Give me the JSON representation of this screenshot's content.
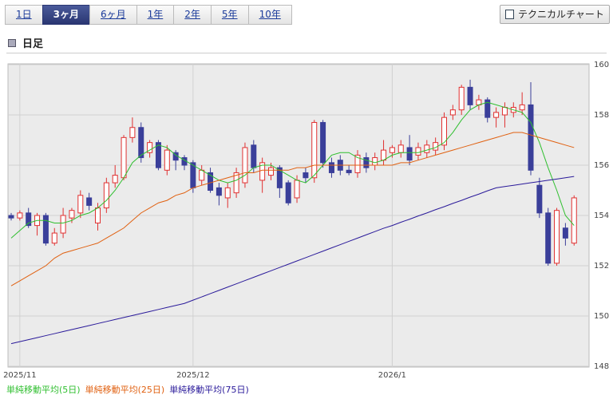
{
  "tabs": {
    "items": [
      "1日",
      "3ヶ月",
      "6ヶ月",
      "1年",
      "2年",
      "5年",
      "10年"
    ],
    "active": 1
  },
  "button": "テクニカルチャート",
  "section_title": "日足",
  "chart_data": {
    "type": "candlestick",
    "categories": [
      null,
      "2025/11",
      null,
      null,
      null,
      null,
      null,
      null,
      null,
      null,
      null,
      null,
      null,
      null,
      null,
      null,
      null,
      null,
      null,
      null,
      null,
      "2025/12",
      null,
      null,
      null,
      null,
      null,
      null,
      null,
      null,
      null,
      null,
      null,
      null,
      null,
      null,
      null,
      null,
      null,
      null,
      null,
      null,
      null,
      null,
      "2026/1",
      null,
      null,
      null,
      null,
      null,
      null,
      null,
      null,
      null,
      null,
      null,
      null,
      null,
      null,
      null,
      null,
      null,
      null,
      null,
      null,
      null
    ],
    "open": [
      154.0,
      153.9,
      154.1,
      153.6,
      154.0,
      152.9,
      153.3,
      153.9,
      154.1,
      154.7,
      153.7,
      154.3,
      155.3,
      155.5,
      157.1,
      157.5,
      156.5,
      156.9,
      155.8,
      156.5,
      156.3,
      156.1,
      155.4,
      155.7,
      155.1,
      154.7,
      154.9,
      155.3,
      156.8,
      155.4,
      155.6,
      155.9,
      155.3,
      154.7,
      155.7,
      155.5,
      157.7,
      156.1,
      156.2,
      155.8,
      155.7,
      156.3,
      156.0,
      156.2,
      156.5,
      156.5,
      156.7,
      156.4,
      156.5,
      156.6,
      156.8,
      158.0,
      158.2,
      159.1,
      158.4,
      158.6,
      157.9,
      158.0,
      158.1,
      158.2,
      158.4,
      155.2,
      154.1,
      152.1,
      153.5,
      152.9
    ],
    "high": [
      154.1,
      154.2,
      154.3,
      154.1,
      154.1,
      153.5,
      154.3,
      154.3,
      155.0,
      154.9,
      154.5,
      155.5,
      156.0,
      157.2,
      157.9,
      157.7,
      157.0,
      157.0,
      156.8,
      156.6,
      156.4,
      156.2,
      156.0,
      155.9,
      155.3,
      155.3,
      155.9,
      156.9,
      157.0,
      156.3,
      156.1,
      156.0,
      155.4,
      155.6,
      155.9,
      157.8,
      157.8,
      156.3,
      156.4,
      156.0,
      156.6,
      156.5,
      156.5,
      157.0,
      156.8,
      157.0,
      157.2,
      156.9,
      157.0,
      157.1,
      158.1,
      158.4,
      159.2,
      159.4,
      158.8,
      158.7,
      158.3,
      158.5,
      158.5,
      158.9,
      159.3,
      155.5,
      154.3,
      154.3,
      153.7,
      154.8
    ],
    "low": [
      153.8,
      153.8,
      153.5,
      153.2,
      152.8,
      152.8,
      153.1,
      153.7,
      153.9,
      154.2,
      153.4,
      154.1,
      155.1,
      155.4,
      156.9,
      156.1,
      156.3,
      155.8,
      155.6,
      155.8,
      155.8,
      154.9,
      155.2,
      154.9,
      154.4,
      154.3,
      154.7,
      155.1,
      155.7,
      154.9,
      155.4,
      154.7,
      154.4,
      154.5,
      155.3,
      155.3,
      155.9,
      155.5,
      155.6,
      155.6,
      155.5,
      155.7,
      155.8,
      156.0,
      156.3,
      156.3,
      156.0,
      156.2,
      156.3,
      156.4,
      156.6,
      157.8,
      158.0,
      158.2,
      158.2,
      157.7,
      157.5,
      157.5,
      157.9,
      158.0,
      155.6,
      153.9,
      152.0,
      152.0,
      152.8,
      152.8
    ],
    "close": [
      153.9,
      154.1,
      153.6,
      154.0,
      152.9,
      153.3,
      154.0,
      154.2,
      154.8,
      154.4,
      154.3,
      155.3,
      155.6,
      157.1,
      157.5,
      156.3,
      156.9,
      155.9,
      156.6,
      156.2,
      156.0,
      155.1,
      155.8,
      155.0,
      154.8,
      155.1,
      155.7,
      156.7,
      155.9,
      156.1,
      155.9,
      155.1,
      154.5,
      155.4,
      155.5,
      157.7,
      156.1,
      155.7,
      155.8,
      155.7,
      156.4,
      155.9,
      156.3,
      156.6,
      156.7,
      156.8,
      156.2,
      156.7,
      156.8,
      156.9,
      157.9,
      158.2,
      159.1,
      158.4,
      158.6,
      157.9,
      158.1,
      158.3,
      158.3,
      158.4,
      155.8,
      154.1,
      152.1,
      154.2,
      153.1,
      154.7
    ],
    "up_color": "#e03030",
    "down_color": "#3a3f9a",
    "series": [
      {
        "name": "単純移動平均(5日)",
        "color": "#2fbf2f",
        "values": [
          153.1,
          153.4,
          153.7,
          153.8,
          153.8,
          153.7,
          153.7,
          153.8,
          154.0,
          154.1,
          154.3,
          154.6,
          155.0,
          155.5,
          156.1,
          156.4,
          156.6,
          156.8,
          156.7,
          156.4,
          156.2,
          156.0,
          155.8,
          155.6,
          155.4,
          155.3,
          155.4,
          155.6,
          155.9,
          156.0,
          156.0,
          155.8,
          155.6,
          155.4,
          155.3,
          155.6,
          156.0,
          156.4,
          156.5,
          156.5,
          156.3,
          156.2,
          156.1,
          156.2,
          156.4,
          156.5,
          156.5,
          156.5,
          156.6,
          156.7,
          156.9,
          157.3,
          157.8,
          158.2,
          158.4,
          158.5,
          158.4,
          158.3,
          158.2,
          158.1,
          157.7,
          156.9,
          155.9,
          155.0,
          154.0,
          153.6
        ]
      },
      {
        "name": "単純移動平均(25日)",
        "color": "#e06010",
        "values": [
          151.2,
          151.4,
          151.6,
          151.8,
          152.0,
          152.3,
          152.5,
          152.6,
          152.7,
          152.8,
          152.9,
          153.1,
          153.3,
          153.5,
          153.8,
          154.1,
          154.3,
          154.5,
          154.6,
          154.8,
          154.9,
          155.1,
          155.2,
          155.3,
          155.4,
          155.5,
          155.6,
          155.7,
          155.7,
          155.8,
          155.8,
          155.8,
          155.8,
          155.9,
          155.9,
          156.0,
          156.0,
          156.0,
          156.0,
          156.0,
          156.0,
          156.0,
          156.0,
          156.0,
          156.0,
          156.1,
          156.1,
          156.2,
          156.3,
          156.4,
          156.5,
          156.6,
          156.7,
          156.8,
          156.9,
          157.0,
          157.1,
          157.2,
          157.3,
          157.3,
          157.2,
          157.1,
          157.0,
          156.9,
          156.8,
          156.7
        ]
      },
      {
        "name": "単純移動平均(75日)",
        "color": "#2a1a9a",
        "values": [
          148.9,
          148.98,
          149.06,
          149.14,
          149.22,
          149.3,
          149.38,
          149.46,
          149.54,
          149.62,
          149.7,
          149.78,
          149.86,
          149.94,
          150.02,
          150.1,
          150.18,
          150.26,
          150.34,
          150.42,
          150.5,
          150.63,
          150.76,
          150.89,
          151.02,
          151.15,
          151.28,
          151.41,
          151.54,
          151.67,
          151.8,
          151.93,
          152.06,
          152.19,
          152.32,
          152.45,
          152.58,
          152.71,
          152.84,
          152.97,
          153.1,
          153.23,
          153.36,
          153.49,
          153.6,
          153.73,
          153.85,
          153.98,
          154.1,
          154.23,
          154.35,
          154.48,
          154.6,
          154.73,
          154.85,
          154.98,
          155.1,
          155.15,
          155.2,
          155.25,
          155.3,
          155.35,
          155.4,
          155.45,
          155.5,
          155.55
        ]
      }
    ],
    "ylim": [
      148,
      160
    ],
    "yticks": [
      148,
      150,
      152,
      154,
      156,
      158,
      160
    ],
    "grid": true
  }
}
